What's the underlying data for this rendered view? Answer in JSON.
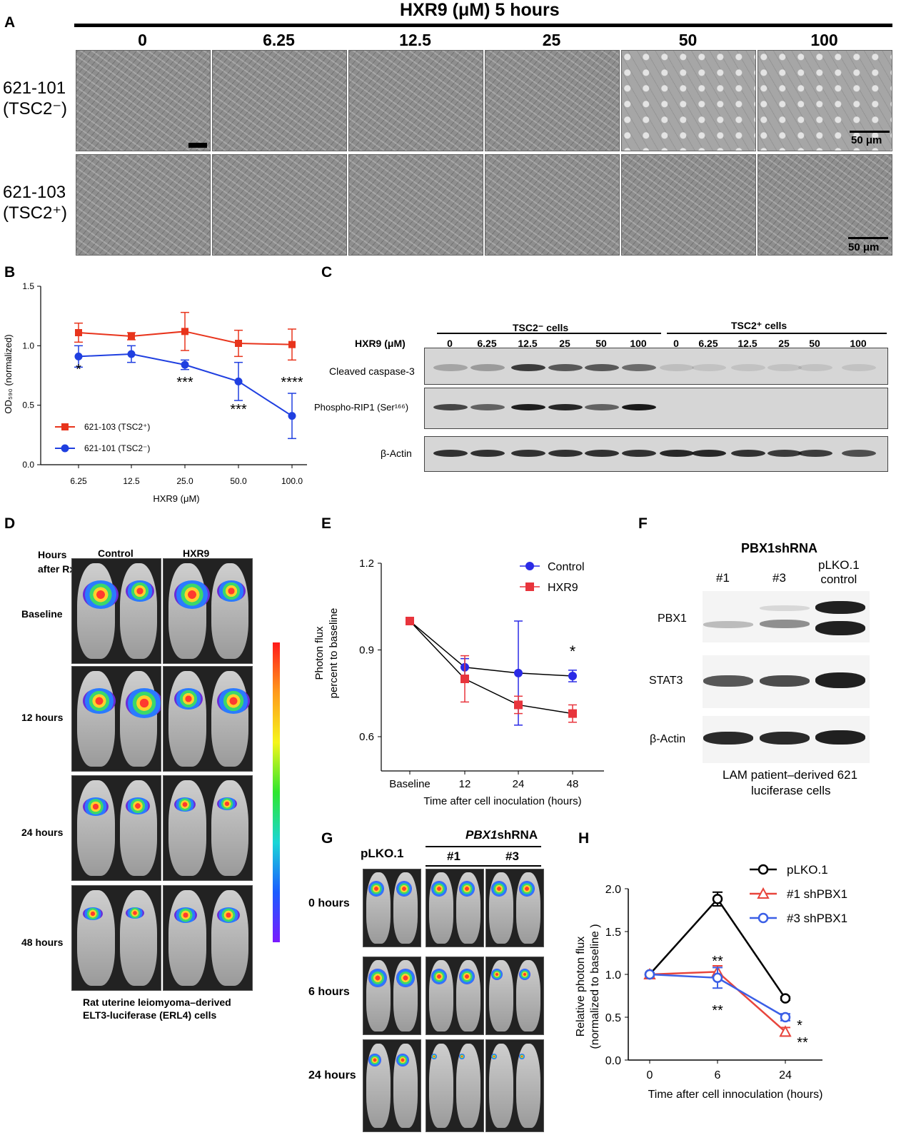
{
  "panelA": {
    "letter": "A",
    "header": "HXR9 (μM) 5 hours",
    "concentrations": [
      "0",
      "6.25",
      "12.5",
      "25",
      "50",
      "100"
    ],
    "row1_label_line1": "621-101",
    "row1_label_line2": "(TSC2⁻)",
    "row2_label_line1": "621-103",
    "row2_label_line2": "(TSC2⁺)",
    "scalebar": "50 μm"
  },
  "panelB": {
    "letter": "B",
    "ylabel": "OD₅₉₀ (normalized)",
    "xlabel": "HXR9  (μM)",
    "legend_tsc2pos": "621-103 (TSC2⁺)",
    "legend_tsc2neg": "621-101 (TSC2⁻)",
    "colors": {
      "tsc2pos": "#e8341c",
      "tsc2neg": "#1f3fe0"
    }
  },
  "panelC": {
    "letter": "C",
    "group1": "TSC2⁻ cells",
    "group2": "TSC2⁺ cells",
    "hxr9_label": "HXR9 (μM)",
    "lane_labels": [
      "0",
      "6.25",
      "12.5",
      "25",
      "50",
      "100",
      "0",
      "6.25",
      "12.5",
      "25",
      "50",
      "100"
    ],
    "row1": "Cleaved caspase-3",
    "row2": "Phospho-RIP1 (Ser¹⁶⁶)",
    "row3": "β-Actin"
  },
  "panelD": {
    "letter": "D",
    "col_header_hours": "Hours",
    "col_header_after": "after Rx",
    "col_control": "Control",
    "col_hxr9": "HXR9",
    "rows": [
      "Baseline",
      "12 hours",
      "24 hours",
      "48 hours"
    ],
    "caption_line1": "Rat uterine leiomyoma–derived",
    "caption_line2": "ELT3-luciferase (ERL4) cells"
  },
  "panelE": {
    "letter": "E",
    "ylabel_line1": "Photon flux",
    "ylabel_line2": "percent to baseline",
    "xlabel": "Time after cell inoculation (hours)",
    "legend_control": "Control",
    "legend_hxr9": "HXR9",
    "colors": {
      "control": "#2a2ae6",
      "hxr9": "#e8343c"
    }
  },
  "panelF": {
    "letter": "F",
    "title": "PBX1shRNA",
    "lane1": "#1",
    "lane2": "#3",
    "lane3_line1": "pLKO.1",
    "lane3_line2": "control",
    "row1": "PBX1",
    "row2": "STAT3",
    "row3": "β-Actin",
    "caption_line1": "LAM patient–derived 621",
    "caption_line2": "luciferase cells"
  },
  "panelG": {
    "letter": "G",
    "col1": "pLKO.1",
    "shrna_header": "PBX1shRNA",
    "shrna_prefix": "PBX1",
    "shrna_suffix": "shRNA",
    "col2": "#1",
    "col3": "#3",
    "rows": [
      "0 hours",
      "6 hours",
      "24 hours"
    ]
  },
  "panelH": {
    "letter": "H",
    "ylabel_line1": "Relative photon flux",
    "ylabel_line2": "(normalized to baseline )",
    "xlabel": "Time after cell innoculation (hours)",
    "legend_plko": "pLKO.1",
    "legend_sh1": "#1 shPBX1",
    "legend_sh3": "#3 shPBX1",
    "colors": {
      "plko": "#000000",
      "sh1": "#e8453c",
      "sh3": "#3b5fe6"
    }
  },
  "chart_data": [
    {
      "id": "B",
      "type": "line",
      "x": [
        6.25,
        12.5,
        25.0,
        50.0,
        100.0
      ],
      "xticks": [
        "6.25",
        "12.5",
        "25.0",
        "50.0",
        "100.0"
      ],
      "yticks": [
        "0.0",
        "0.5",
        "1.0",
        "1.5"
      ],
      "ylim": [
        0,
        1.5
      ],
      "xlabel": "HXR9  (μM)",
      "ylabel": "OD590 (normalized)",
      "series": [
        {
          "name": "621-103 (TSC2+)",
          "values": [
            1.11,
            1.08,
            1.12,
            1.02,
            1.01
          ],
          "err": [
            0.08,
            0.03,
            0.16,
            0.11,
            0.13
          ]
        },
        {
          "name": "621-101 (TSC2-)",
          "values": [
            0.91,
            0.93,
            0.84,
            0.7,
            0.41
          ],
          "err": [
            0.09,
            0.07,
            0.04,
            0.16,
            0.19
          ]
        }
      ],
      "annotations": [
        {
          "x": 6.25,
          "text": "*"
        },
        {
          "x": 25.0,
          "text": "***"
        },
        {
          "x": 50.0,
          "text": "***"
        },
        {
          "x": 100.0,
          "text": "****"
        }
      ],
      "legend": "bottom-left"
    },
    {
      "id": "E",
      "type": "line",
      "categories": [
        "Baseline",
        "12",
        "24",
        "48"
      ],
      "yticks": [
        "0.6",
        "0.9",
        "1.2"
      ],
      "ylim": [
        0.55,
        1.2
      ],
      "xlabel": "Time after cell inoculation (hours)",
      "ylabel": "Photon flux percent to baseline",
      "series": [
        {
          "name": "Control",
          "values": [
            1.0,
            0.84,
            0.82,
            0.81
          ],
          "err": [
            0,
            0.03,
            0.18,
            0.02
          ]
        },
        {
          "name": "HXR9",
          "values": [
            1.0,
            0.8,
            0.71,
            0.68
          ],
          "err": [
            0,
            0.08,
            0.03,
            0.03
          ]
        }
      ],
      "annotations": [
        {
          "category": "48",
          "text": "*"
        }
      ],
      "legend": "top-right"
    },
    {
      "id": "H",
      "type": "line",
      "x": [
        0,
        6,
        24
      ],
      "xticks": [
        "0",
        "6",
        "24"
      ],
      "yticks": [
        "0.0",
        "0.5",
        "1.0",
        "1.5",
        "2.0"
      ],
      "ylim": [
        0,
        2.0
      ],
      "xlabel": "Time after cell innoculation (hours)",
      "ylabel": "Relative photon flux (normalized to baseline )",
      "series": [
        {
          "name": "pLKO.1",
          "values": [
            1.0,
            1.88,
            0.72
          ],
          "err": [
            0,
            0.08,
            0.02
          ]
        },
        {
          "name": "#1 shPBX1",
          "values": [
            1.0,
            1.03,
            0.33
          ],
          "err": [
            0,
            0.07,
            0.05
          ]
        },
        {
          "name": "#3 shPBX1",
          "values": [
            1.0,
            0.96,
            0.5
          ],
          "err": [
            0,
            0.12,
            0.04
          ]
        }
      ],
      "annotations": [
        {
          "x": 6,
          "text": "**",
          "position": "above"
        },
        {
          "x": 6,
          "text": "**",
          "position": "below"
        },
        {
          "x": 24,
          "text": "*"
        },
        {
          "x": 24,
          "text": "**"
        }
      ],
      "legend": "top-right"
    }
  ]
}
